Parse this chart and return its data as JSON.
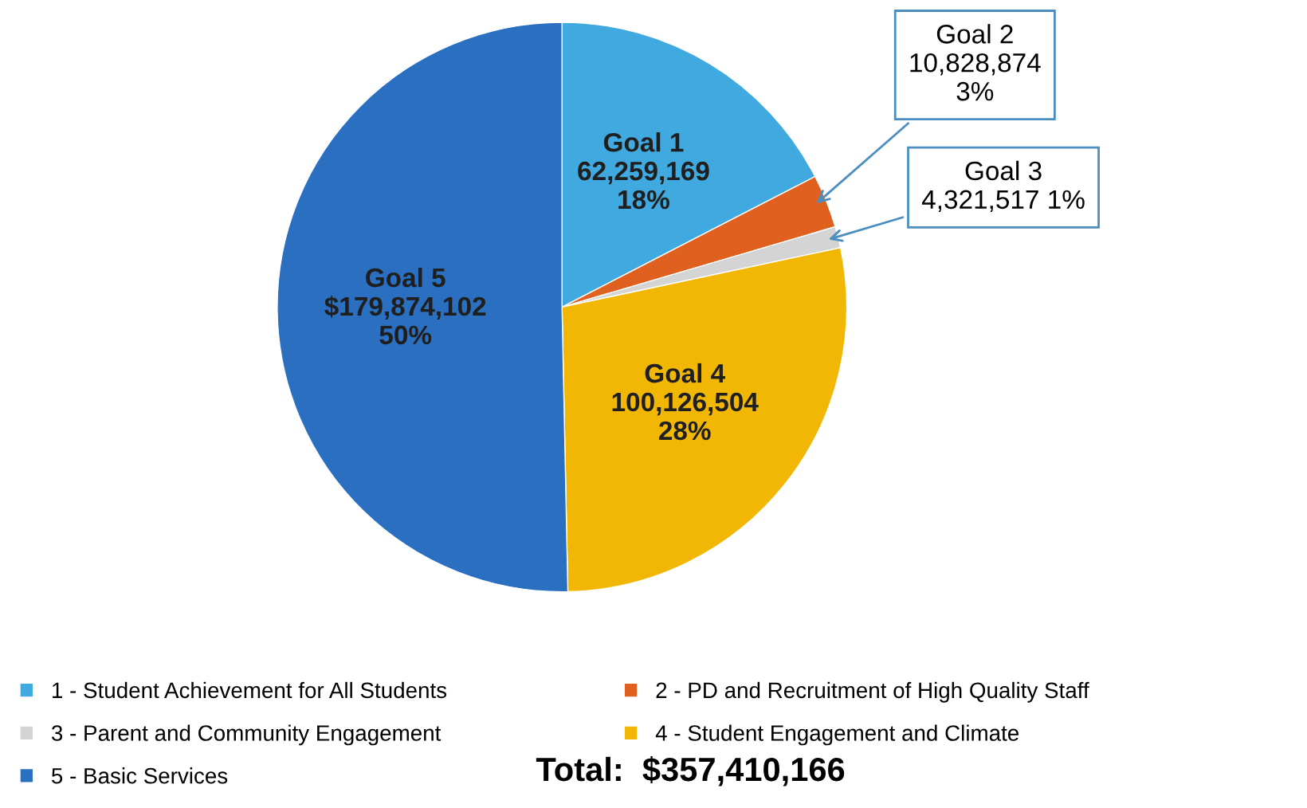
{
  "chart_data": {
    "type": "pie",
    "categories": [
      "1 - Student Achievement for All Students",
      "2 - PD and Recruitment of High Quality Staff",
      "3 - Parent and Community Engagement",
      "4 - Student Engagement and Climate",
      "5 - Basic Services"
    ],
    "values": [
      62259169,
      10828874,
      4321517,
      100126504,
      179874102
    ],
    "colors": [
      "#3fa9e0",
      "#e0601f",
      "#d4d4d4",
      "#f2b705",
      "#2a6fc0"
    ],
    "value_labels": [
      "Goal 1\n62,259,169\n18%",
      "Goal 2\n10,828,874\n3%",
      "Goal 3\n4,321,517 1%",
      "Goal 4\n100,126,504\n28%",
      "Goal 5\n$179,874,102\n50%"
    ],
    "legend": "bottom",
    "annotations": [
      "Total:  $357,410,166"
    ]
  }
}
